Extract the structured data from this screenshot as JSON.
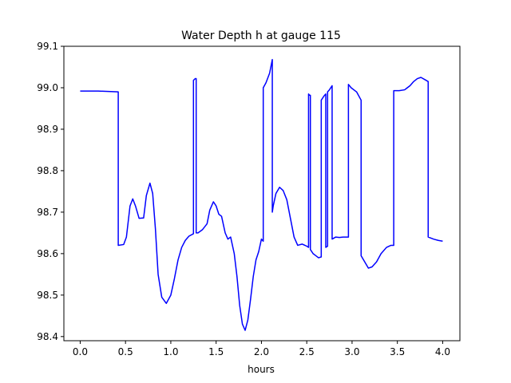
{
  "chart_data": {
    "type": "line",
    "title": "Water Depth h at gauge 115",
    "xlabel": "hours",
    "ylabel": "",
    "xlim": [
      -0.18,
      4.19
    ],
    "ylim": [
      98.39,
      99.1
    ],
    "xticks": [
      0.0,
      0.5,
      1.0,
      1.5,
      2.0,
      2.5,
      3.0,
      3.5,
      4.0
    ],
    "xtick_labels": [
      "0.0",
      "0.5",
      "1.0",
      "1.5",
      "2.0",
      "2.5",
      "3.0",
      "3.5",
      "4.0"
    ],
    "yticks": [
      98.4,
      98.5,
      98.6,
      98.7,
      98.8,
      98.9,
      99.0,
      99.1
    ],
    "ytick_labels": [
      "98.4",
      "98.5",
      "98.6",
      "98.7",
      "98.8",
      "98.9",
      "99.0",
      "99.1"
    ],
    "grid": false,
    "series": [
      {
        "color": "#0000ff",
        "x": [
          0.0,
          0.2,
          0.42,
          0.42,
          0.48,
          0.51,
          0.55,
          0.58,
          0.61,
          0.65,
          0.7,
          0.73,
          0.77,
          0.8,
          0.83,
          0.86,
          0.9,
          0.95,
          1.0,
          1.04,
          1.08,
          1.12,
          1.16,
          1.2,
          1.25,
          1.25,
          1.26,
          1.27,
          1.28,
          1.28,
          1.3,
          1.35,
          1.4,
          1.43,
          1.47,
          1.5,
          1.53,
          1.56,
          1.6,
          1.63,
          1.66,
          1.7,
          1.73,
          1.76,
          1.79,
          1.82,
          1.85,
          1.88,
          1.91,
          1.94,
          1.97,
          2.0,
          2.02,
          2.02,
          2.05,
          2.09,
          2.12,
          2.12,
          2.13,
          2.16,
          2.2,
          2.24,
          2.28,
          2.32,
          2.36,
          2.4,
          2.45,
          2.5,
          2.52,
          2.52,
          2.53,
          2.54,
          2.54,
          2.57,
          2.6,
          2.63,
          2.66,
          2.66,
          2.69,
          2.71,
          2.71,
          2.73,
          2.73,
          2.75,
          2.78,
          2.78,
          2.82,
          2.86,
          2.9,
          2.96,
          2.96,
          2.99,
          3.05,
          3.1,
          3.1,
          3.14,
          3.18,
          3.22,
          3.27,
          3.32,
          3.38,
          3.43,
          3.46,
          3.46,
          3.52,
          3.58,
          3.64,
          3.68,
          3.72,
          3.76,
          3.8,
          3.84,
          3.84,
          3.9,
          3.95,
          4.0
        ],
        "y": [
          98.992,
          98.992,
          98.99,
          98.62,
          98.622,
          98.64,
          98.715,
          98.732,
          98.715,
          98.685,
          98.686,
          98.74,
          98.77,
          98.745,
          98.66,
          98.55,
          98.495,
          98.48,
          98.5,
          98.54,
          98.585,
          98.615,
          98.632,
          98.642,
          98.648,
          99.018,
          99.02,
          99.022,
          99.022,
          98.65,
          98.65,
          98.658,
          98.672,
          98.705,
          98.725,
          98.715,
          98.695,
          98.69,
          98.65,
          98.635,
          98.64,
          98.6,
          98.545,
          98.475,
          98.43,
          98.415,
          98.44,
          98.49,
          98.545,
          98.585,
          98.605,
          98.635,
          98.63,
          99.0,
          99.012,
          99.035,
          99.068,
          98.7,
          98.715,
          98.745,
          98.76,
          98.752,
          98.73,
          98.685,
          98.64,
          98.62,
          98.623,
          98.618,
          98.615,
          98.985,
          98.982,
          98.982,
          98.61,
          98.6,
          98.595,
          98.59,
          98.592,
          98.97,
          98.98,
          98.985,
          98.615,
          98.618,
          98.99,
          98.995,
          99.005,
          98.635,
          98.64,
          98.639,
          98.64,
          98.64,
          99.008,
          99.0,
          98.99,
          98.97,
          98.595,
          98.58,
          98.565,
          98.568,
          98.58,
          98.6,
          98.615,
          98.62,
          98.62,
          98.993,
          98.993,
          98.995,
          99.005,
          99.015,
          99.022,
          99.025,
          99.02,
          99.015,
          98.64,
          98.635,
          98.632,
          98.63
        ]
      }
    ]
  }
}
